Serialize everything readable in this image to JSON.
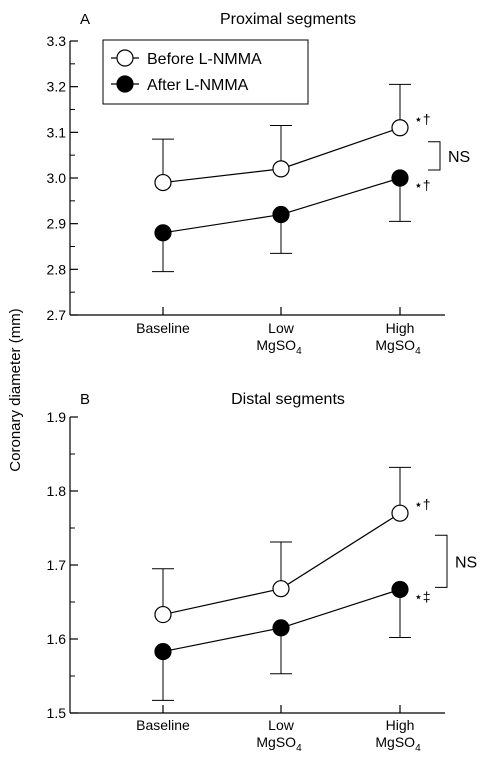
{
  "ylabel": "Coronary diameter (mm)",
  "colors": {
    "before_fill": "#ffffff",
    "after_fill": "#000000",
    "stroke": "#000000"
  },
  "chart_data": [
    {
      "type": "line",
      "panel_label": "A",
      "title": "Proximal segments",
      "categories": [
        [
          "Baseline"
        ],
        [
          "Low",
          "MgSO",
          "4"
        ],
        [
          "High",
          "MgSO",
          "4"
        ]
      ],
      "ylim": [
        2.7,
        3.3
      ],
      "yticks": [
        "2.7",
        "2.8",
        "2.9",
        "3.0",
        "3.1",
        "3.2",
        "3.3"
      ],
      "grid": false,
      "legend_position": "top-left",
      "series": [
        {
          "name": "Before L-NMMA",
          "marker": "open-circle",
          "values": [
            2.99,
            3.02,
            3.11
          ],
          "error": [
            0.095,
            0.095,
            0.095
          ],
          "annotations": [
            "",
            "",
            "⋆†"
          ]
        },
        {
          "name": "After L-NMMA",
          "marker": "filled-circle",
          "values": [
            2.88,
            2.92,
            3.0
          ],
          "error": [
            0.085,
            0.085,
            0.095
          ],
          "annotations": [
            "",
            "",
            "⋆†"
          ]
        }
      ],
      "bracket_label": "NS"
    },
    {
      "type": "line",
      "panel_label": "B",
      "title": "Distal segments",
      "categories": [
        [
          "Baseline"
        ],
        [
          "Low",
          "MgSO",
          "4"
        ],
        [
          "High",
          "MgSO",
          "4"
        ]
      ],
      "ylim": [
        1.5,
        1.9
      ],
      "yticks": [
        "1.5",
        "1.6",
        "1.7",
        "1.8",
        "1.9"
      ],
      "grid": false,
      "series": [
        {
          "name": "Before L-NMMA",
          "marker": "open-circle",
          "values": [
            1.633,
            1.668,
            1.77
          ],
          "error": [
            0.062,
            0.063,
            0.062
          ],
          "annotations": [
            "",
            "",
            "⋆†"
          ]
        },
        {
          "name": "After L-NMMA",
          "marker": "filled-circle",
          "values": [
            1.583,
            1.615,
            1.667
          ],
          "error": [
            0.066,
            0.062,
            0.065
          ],
          "annotations": [
            "",
            "",
            "⋆‡"
          ]
        }
      ],
      "bracket_label": "NS"
    }
  ]
}
